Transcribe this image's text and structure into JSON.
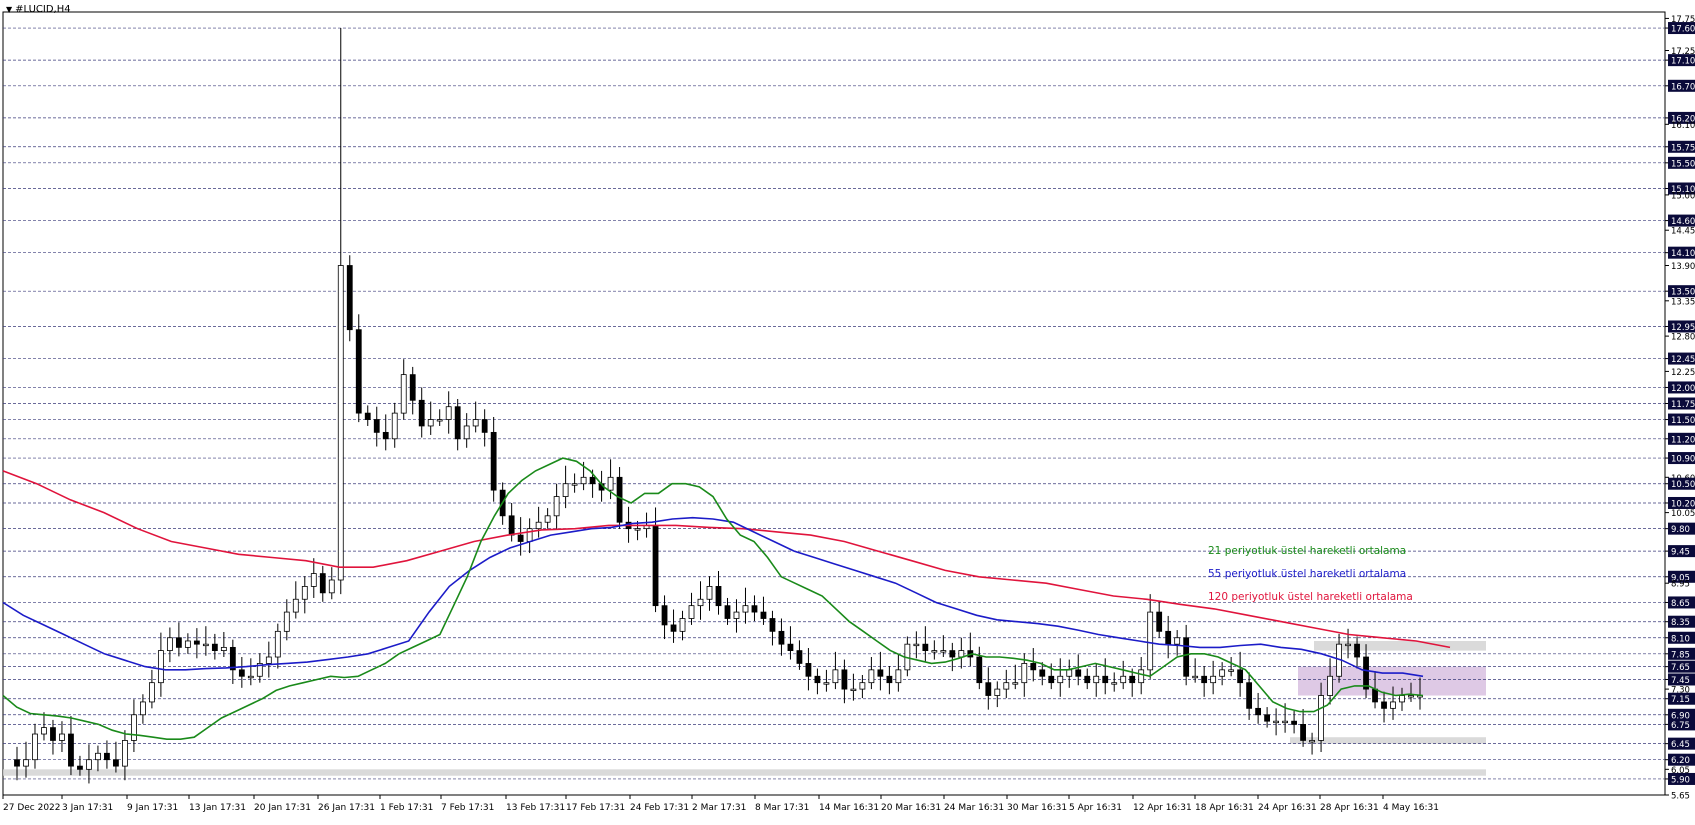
{
  "window": {
    "title": "#LUCID,H4",
    "menu_icon": "triangle-down-icon"
  },
  "legend": [
    {
      "label": "21 periyotluk üstel hareketli ortalama",
      "color": "#1a8a1a"
    },
    {
      "label": "55 periyotluk üstel hareketli ortalama",
      "color": "#1c1cc8"
    },
    {
      "label": "120 periyotluk üstel hareketli ortalama",
      "color": "#e0143c"
    }
  ],
  "colors": {
    "bull_candle": "#ffffff",
    "bear_candle": "#000000",
    "grid": "#3a3a7a",
    "price_label_bg": "#0a0a3a",
    "zone_grey": "#d3d3d3",
    "zone_purple": "#d8bfe0"
  },
  "chart_data": {
    "type": "candlestick",
    "symbol": "#LUCID",
    "timeframe": "H4",
    "ylim": [
      5.65,
      17.85
    ],
    "y_ticks": [
      "17.75",
      "17.60",
      "17.25",
      "17.10",
      "16.70",
      "16.20",
      "16.10",
      "15.75",
      "15.50",
      "15.10",
      "15.00",
      "14.60",
      "14.45",
      "14.10",
      "13.90",
      "13.50",
      "13.35",
      "12.95",
      "12.80",
      "12.45",
      "12.25",
      "12.00",
      "11.75",
      "11.50",
      "11.20",
      "10.90",
      "10.60",
      "10.50",
      "10.20",
      "10.05",
      "9.80",
      "9.45",
      "9.05",
      "8.95",
      "8.65",
      "8.35",
      "8.10",
      "7.85",
      "7.65",
      "7.45",
      "7.30",
      "7.15",
      "6.90",
      "6.75",
      "6.45",
      "6.20",
      "6.05",
      "5.90",
      "5.65"
    ],
    "highlighted_levels": [
      "17.60",
      "17.10",
      "16.70",
      "16.20",
      "15.75",
      "15.50",
      "15.10",
      "14.60",
      "14.10",
      "13.50",
      "12.95",
      "12.45",
      "12.00",
      "11.75",
      "11.50",
      "11.20",
      "10.90",
      "10.50",
      "10.20",
      "9.80",
      "9.45",
      "9.05",
      "8.65",
      "8.35",
      "8.10",
      "7.85",
      "7.65",
      "7.45",
      "7.15",
      "6.90",
      "6.75",
      "6.45",
      "6.20",
      "5.90"
    ],
    "x_labels": [
      "27 Dec 2022",
      "3 Jan 17:31",
      "9 Jan 17:31",
      "13 Jan 17:31",
      "20 Jan 17:31",
      "26 Jan 17:31",
      "1 Feb 17:31",
      "7 Feb 17:31",
      "13 Feb 17:31",
      "17 Feb 17:31",
      "24 Feb 17:31",
      "2 Mar 17:31",
      "8 Mar 17:31",
      "14 Mar 16:31",
      "20 Mar 16:31",
      "24 Mar 16:31",
      "30 Mar 16:31",
      "5 Apr 16:31",
      "12 Apr 16:31",
      "18 Apr 16:31",
      "24 Apr 16:31",
      "28 Apr 16:31",
      "4 May 16:31"
    ],
    "price_path": [
      6.2,
      6.1,
      6.2,
      6.6,
      6.7,
      6.5,
      6.6,
      6.1,
      6.05,
      6.2,
      6.3,
      6.2,
      6.1,
      6.5,
      6.9,
      7.1,
      7.4,
      7.9,
      8.1,
      7.95,
      8.05,
      8.0,
      8.0,
      7.9,
      7.95,
      7.6,
      7.5,
      7.5,
      7.7,
      7.8,
      8.2,
      8.5,
      8.7,
      8.9,
      9.1,
      8.8,
      9.0,
      13.9,
      12.9,
      11.6,
      11.5,
      11.3,
      11.2,
      11.6,
      12.2,
      11.8,
      11.4,
      11.5,
      11.5,
      11.7,
      11.2,
      11.4,
      11.5,
      11.3,
      10.4,
      10.0,
      9.7,
      9.6,
      9.8,
      9.9,
      10.0,
      10.3,
      10.5,
      10.5,
      10.6,
      10.5,
      10.4,
      10.6,
      9.9,
      9.8,
      9.8,
      9.85,
      8.6,
      8.3,
      8.2,
      8.4,
      8.6,
      8.7,
      8.9,
      8.6,
      8.4,
      8.5,
      8.6,
      8.5,
      8.4,
      8.2,
      8.0,
      7.9,
      7.7,
      7.5,
      7.4,
      7.4,
      7.6,
      7.3,
      7.3,
      7.4,
      7.6,
      7.5,
      7.4,
      7.6,
      8.0,
      8.0,
      7.9,
      7.9,
      7.9,
      7.8,
      7.9,
      7.8,
      7.4,
      7.2,
      7.3,
      7.4,
      7.4,
      7.7,
      7.6,
      7.5,
      7.4,
      7.5,
      7.6,
      7.5,
      7.4,
      7.5,
      7.4,
      7.4,
      7.5,
      7.4,
      7.6,
      8.5,
      8.2,
      8.0,
      8.1,
      7.5,
      7.5,
      7.4,
      7.5,
      7.6,
      7.6,
      7.4,
      7.0,
      6.9,
      6.8,
      6.8,
      6.8,
      6.75,
      6.5,
      6.5,
      7.2,
      7.5,
      8.0,
      8.0,
      7.8,
      7.3,
      7.1,
      7.0,
      7.1,
      7.2,
      7.2,
      7.2
    ],
    "ema21": [
      7.2,
      7.02,
      6.92,
      6.9,
      6.88,
      6.85,
      6.8,
      6.75,
      6.66,
      6.6,
      6.58,
      6.55,
      6.52,
      6.52,
      6.55,
      6.7,
      6.85,
      6.95,
      7.05,
      7.15,
      7.28,
      7.35,
      7.4,
      7.45,
      7.5,
      7.48,
      7.5,
      7.6,
      7.7,
      7.85,
      7.95,
      8.05,
      8.15,
      8.6,
      9.05,
      9.6,
      10.0,
      10.35,
      10.55,
      10.7,
      10.8,
      10.9,
      10.85,
      10.7,
      10.45,
      10.3,
      10.2,
      10.35,
      10.35,
      10.5,
      10.5,
      10.45,
      10.3,
      9.95,
      9.7,
      9.6,
      9.35,
      9.05,
      8.95,
      8.85,
      8.75,
      8.55,
      8.35,
      8.2,
      8.05,
      7.9,
      7.8,
      7.75,
      7.7,
      7.72,
      7.78,
      7.85,
      7.8,
      7.8,
      7.78,
      7.75,
      7.7,
      7.6,
      7.6,
      7.65,
      7.7,
      7.65,
      7.6,
      7.55,
      7.5,
      7.65,
      7.8,
      7.85,
      7.85,
      7.8,
      7.7,
      7.6,
      7.35,
      7.1,
      7.0,
      6.95,
      6.95,
      7.05,
      7.3,
      7.35,
      7.35,
      7.25,
      7.2,
      7.22,
      7.2
    ],
    "ema55": [
      8.65,
      8.45,
      8.3,
      8.15,
      8.0,
      7.85,
      7.75,
      7.65,
      7.6,
      7.6,
      7.62,
      7.63,
      7.65,
      7.68,
      7.7,
      7.72,
      7.76,
      7.8,
      7.85,
      7.95,
      8.05,
      8.5,
      8.9,
      9.15,
      9.35,
      9.5,
      9.6,
      9.7,
      9.75,
      9.8,
      9.82,
      9.88,
      9.9,
      9.95,
      9.97,
      9.95,
      9.9,
      9.75,
      9.6,
      9.45,
      9.35,
      9.25,
      9.15,
      9.05,
      8.95,
      8.8,
      8.65,
      8.55,
      8.45,
      8.38,
      8.35,
      8.32,
      8.28,
      8.22,
      8.15,
      8.1,
      8.05,
      8.0,
      7.98,
      7.95,
      7.95,
      7.98,
      8.0,
      7.95,
      7.92,
      7.85,
      7.75,
      7.6,
      7.55,
      7.55,
      7.5
    ],
    "ema120": [
      10.7,
      10.5,
      10.25,
      10.05,
      9.8,
      9.6,
      9.5,
      9.4,
      9.35,
      9.3,
      9.2,
      9.2,
      9.3,
      9.45,
      9.6,
      9.7,
      9.78,
      9.8,
      9.85,
      9.85,
      9.85,
      9.82,
      9.8,
      9.75,
      9.7,
      9.6,
      9.45,
      9.3,
      9.15,
      9.05,
      9.0,
      8.95,
      8.85,
      8.75,
      8.7,
      8.62,
      8.55,
      8.45,
      8.35,
      8.25,
      8.15,
      8.1,
      8.05,
      7.95
    ],
    "zones": [
      {
        "from": 8.05,
        "to": 7.9,
        "color": "grey"
      },
      {
        "from": 7.65,
        "to": 7.2,
        "color": "purple"
      },
      {
        "from": 6.55,
        "to": 6.45,
        "color": "grey"
      },
      {
        "from": 6.05,
        "to": 5.95,
        "color": "grey"
      }
    ]
  }
}
